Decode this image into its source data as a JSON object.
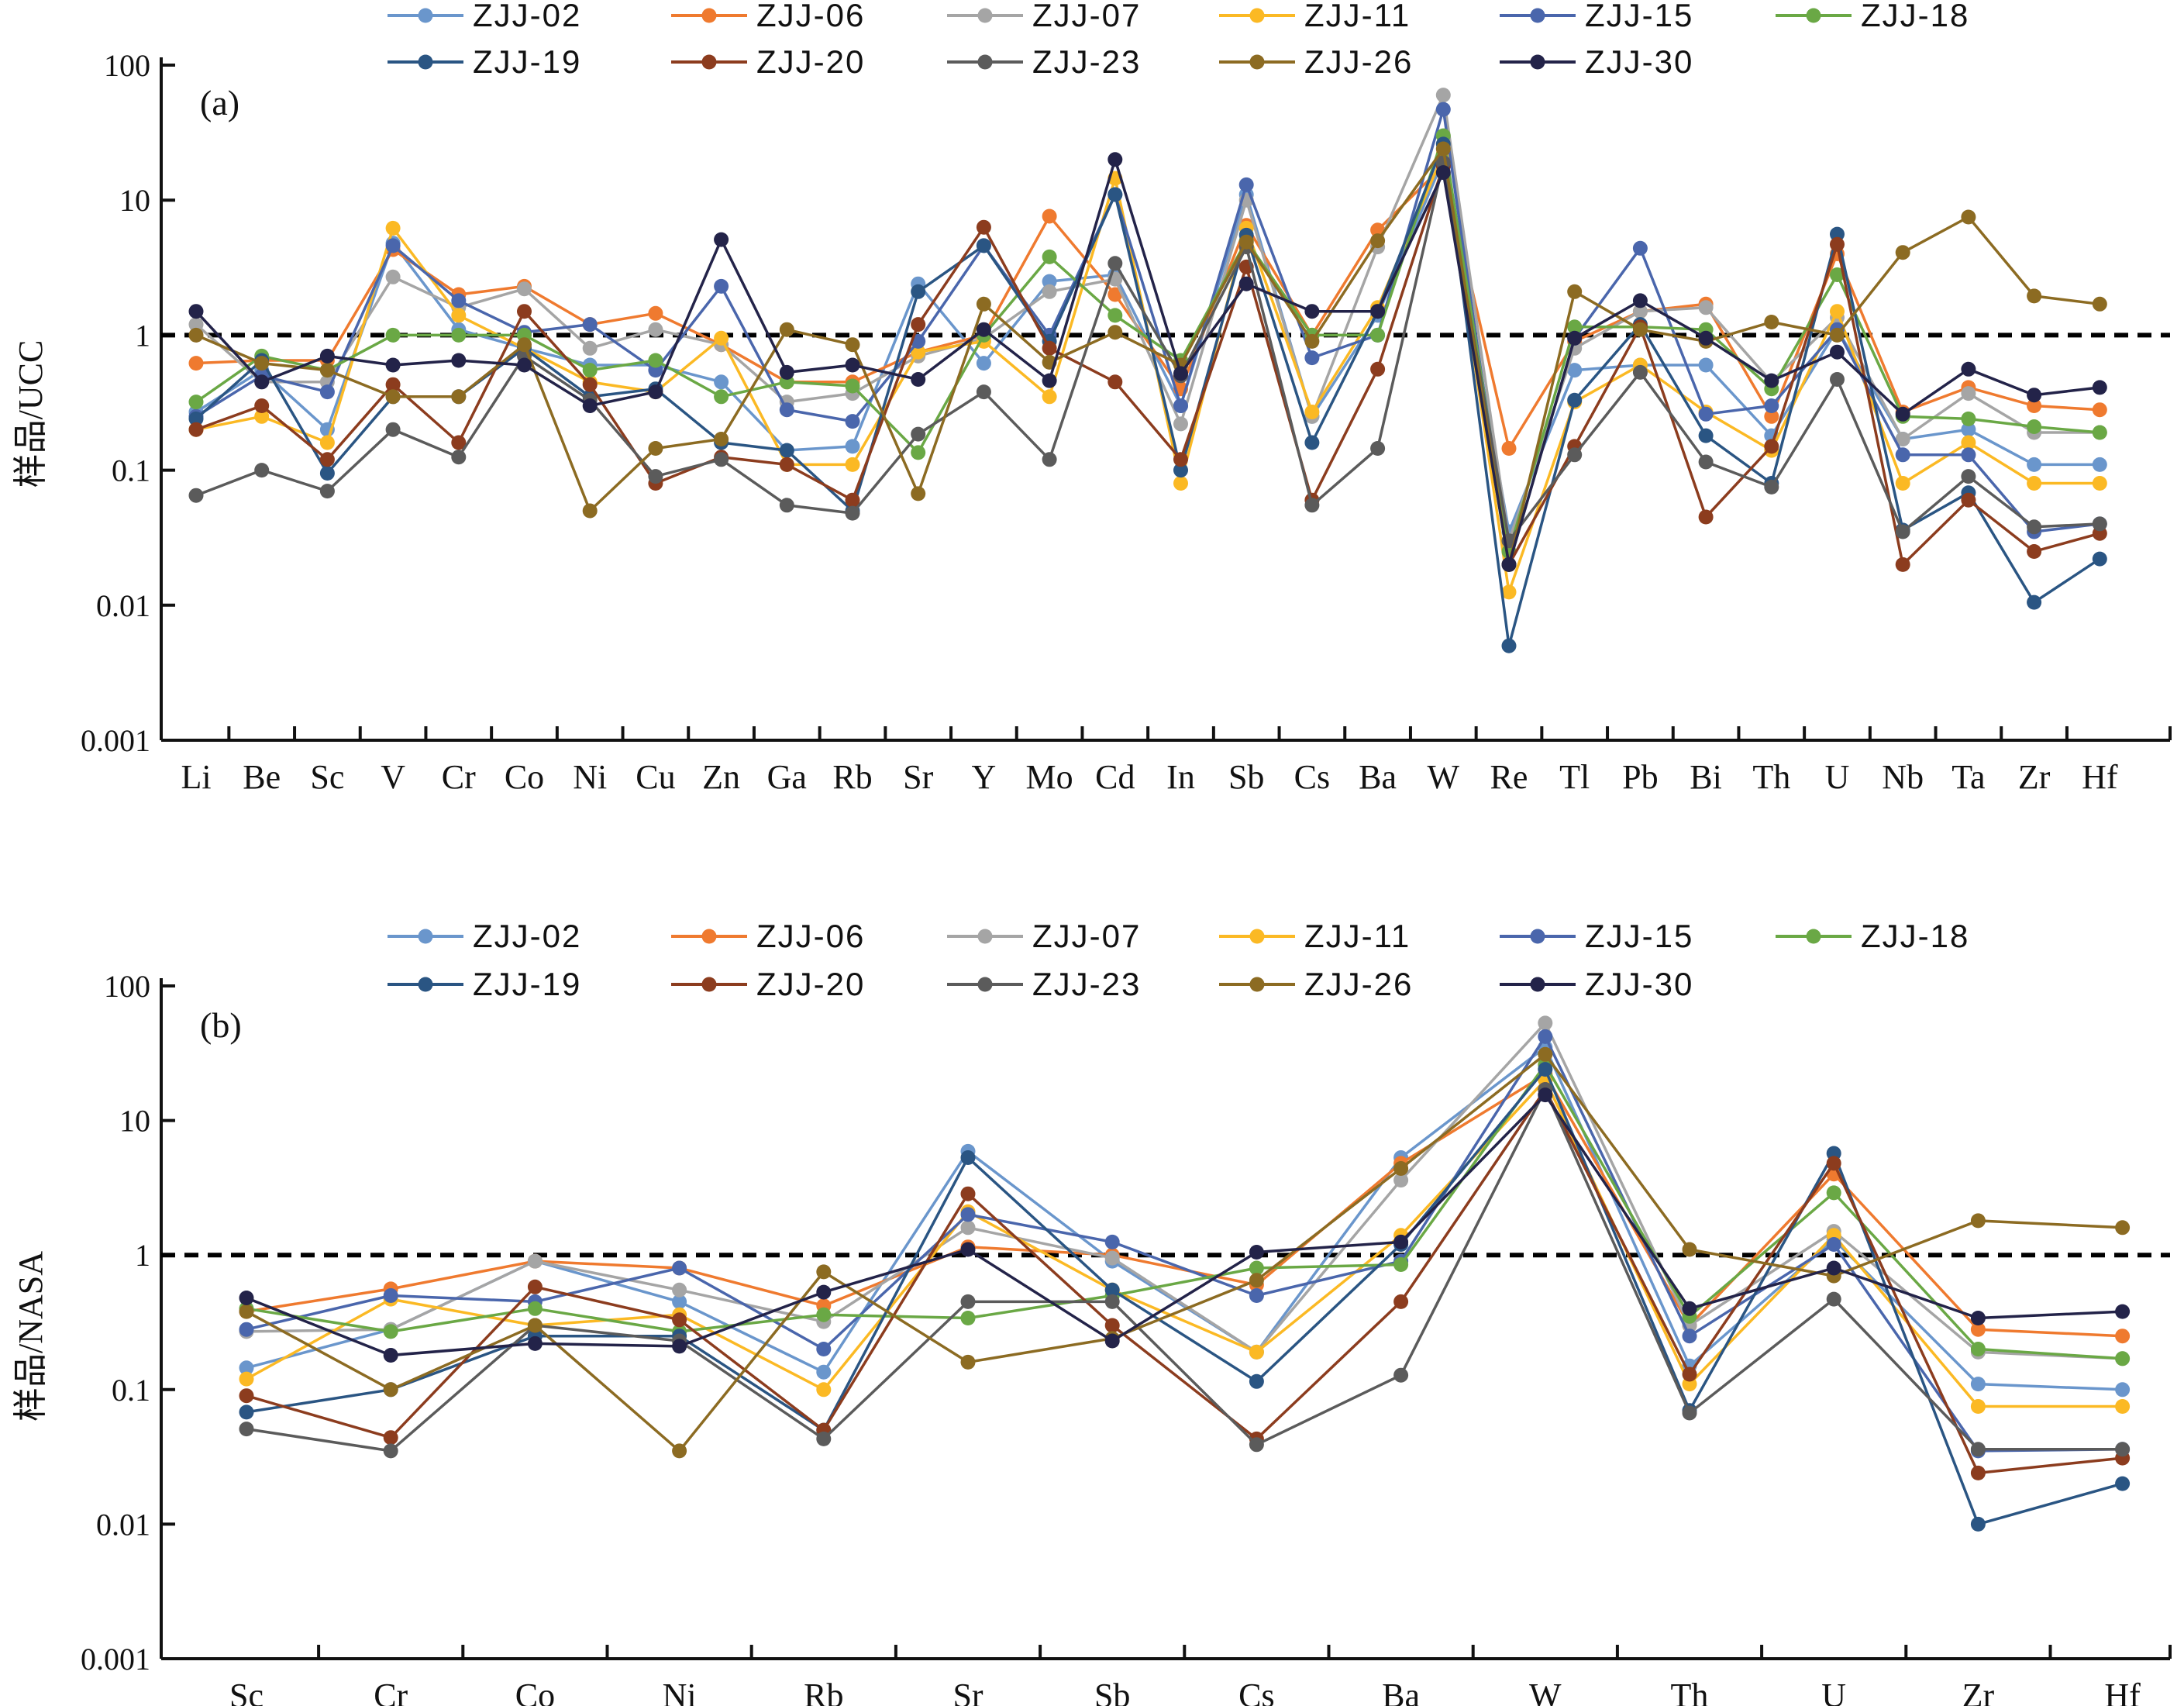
{
  "figure": {
    "series_colors": {
      "ZJJ-02": "#6a96cc",
      "ZJJ-06": "#ef7a2f",
      "ZJJ-07": "#a5a5a5",
      "ZJJ-11": "#fbb924",
      "ZJJ-15": "#4a66ac",
      "ZJJ-18": "#6aa845",
      "ZJJ-19": "#2a5583",
      "ZJJ-20": "#8c3c1e",
      "ZJJ-23": "#5b5b5b",
      "ZJJ-26": "#8c6b22",
      "ZJJ-30": "#232349"
    },
    "reference_line": 1
  },
  "chart_data": [
    {
      "type": "line",
      "panel_label": "(a)",
      "ylabel": "样品/UCC",
      "yscale": "log",
      "ylim": [
        0.001,
        100
      ],
      "y_tick_labels": [
        "0.001",
        "0.01",
        "0.1",
        "1",
        "10",
        "100"
      ],
      "grid": false,
      "legend_position": "top",
      "reference_line": 1,
      "categories": [
        "Li",
        "Be",
        "Sc",
        "V",
        "Cr",
        "Co",
        "Ni",
        "Cu",
        "Zn",
        "Ga",
        "Rb",
        "Sr",
        "Y",
        "Mo",
        "Cd",
        "In",
        "Sb",
        "Cs",
        "Ba",
        "W",
        "Re",
        "Tl",
        "Pb",
        "Bi",
        "Th",
        "U",
        "Nb",
        "Ta",
        "Zr",
        "Hf"
      ],
      "series": [
        {
          "name": "ZJJ-02",
          "values": [
            0.27,
            0.55,
            0.2,
            4.8,
            1.1,
            0.8,
            0.6,
            0.6,
            0.45,
            0.14,
            0.15,
            2.4,
            0.62,
            2.5,
            2.8,
            0.3,
            11,
            0.25,
            1.4,
            20,
            0.035,
            0.55,
            0.6,
            0.6,
            0.18,
            1.1,
            0.17,
            0.2,
            0.11,
            0.11
          ]
        },
        {
          "name": "ZJJ-06",
          "values": [
            0.62,
            0.65,
            0.65,
            4.3,
            2.0,
            2.3,
            1.2,
            1.45,
            0.85,
            0.45,
            0.45,
            0.75,
            1.0,
            7.6,
            2.0,
            0.4,
            6.5,
            1.0,
            6.0,
            18,
            0.145,
            0.9,
            1.5,
            1.7,
            0.25,
            4.0,
            0.27,
            0.41,
            0.3,
            0.28
          ]
        },
        {
          "name": "ZJJ-07",
          "values": [
            1.2,
            0.45,
            0.45,
            2.7,
            1.6,
            2.2,
            0.8,
            1.1,
            0.85,
            0.32,
            0.37,
            0.7,
            0.95,
            2.1,
            2.6,
            0.22,
            10,
            0.25,
            4.5,
            60,
            0.03,
            0.8,
            1.5,
            1.6,
            0.45,
            1.35,
            0.17,
            0.37,
            0.19,
            0.19
          ]
        },
        {
          "name": "ZJJ-11",
          "values": [
            0.2,
            0.25,
            0.16,
            6.2,
            1.4,
            0.8,
            0.45,
            0.38,
            0.95,
            0.11,
            0.11,
            0.75,
            0.9,
            0.35,
            14.5,
            0.08,
            6.2,
            0.27,
            1.6,
            22,
            0.0125,
            0.32,
            0.6,
            0.27,
            0.14,
            1.5,
            0.08,
            0.16,
            0.08,
            0.08
          ]
        },
        {
          "name": "ZJJ-15",
          "values": [
            0.25,
            0.5,
            0.38,
            4.6,
            1.8,
            1.05,
            1.2,
            0.55,
            2.3,
            0.28,
            0.23,
            0.9,
            4.6,
            1.0,
            11,
            0.3,
            13,
            0.68,
            1.0,
            47,
            0.02,
            0.95,
            4.4,
            0.26,
            0.3,
            1.1,
            0.13,
            0.13,
            0.035,
            0.04
          ]
        },
        {
          "name": "ZJJ-18",
          "values": [
            0.32,
            0.7,
            0.55,
            1.0,
            1.0,
            1.0,
            0.55,
            0.65,
            0.35,
            0.45,
            0.42,
            0.135,
            1.0,
            3.8,
            1.4,
            0.65,
            5.0,
            1.0,
            1.0,
            30,
            0.025,
            1.15,
            1.15,
            1.1,
            0.4,
            2.8,
            0.25,
            0.24,
            0.21,
            0.19
          ]
        },
        {
          "name": "ZJJ-19",
          "values": [
            0.24,
            0.65,
            0.095,
            0.35,
            0.35,
            0.8,
            0.35,
            0.4,
            0.16,
            0.14,
            0.05,
            2.1,
            4.6,
            0.9,
            11,
            0.1,
            5.5,
            0.16,
            1.5,
            26,
            0.005,
            0.33,
            1.2,
            0.18,
            0.08,
            5.6,
            0.036,
            0.068,
            0.0105,
            0.022
          ]
        },
        {
          "name": "ZJJ-20",
          "values": [
            0.2,
            0.3,
            0.12,
            0.43,
            0.16,
            1.5,
            0.43,
            0.08,
            0.125,
            0.11,
            0.06,
            1.2,
            6.3,
            0.8,
            0.45,
            0.12,
            3.2,
            0.06,
            0.56,
            18,
            0.02,
            0.15,
            1.15,
            0.045,
            0.15,
            4.7,
            0.02,
            0.06,
            0.025,
            0.034
          ]
        },
        {
          "name": "ZJJ-23",
          "values": [
            0.065,
            0.1,
            0.07,
            0.2,
            0.125,
            0.7,
            0.33,
            0.09,
            0.12,
            0.055,
            0.048,
            0.185,
            0.38,
            0.12,
            3.4,
            0.5,
            4.5,
            0.055,
            0.145,
            19,
            0.03,
            0.13,
            0.53,
            0.115,
            0.075,
            0.47,
            0.035,
            0.09,
            0.038,
            0.04
          ]
        },
        {
          "name": "ZJJ-26",
          "values": [
            1.0,
            0.62,
            0.55,
            0.35,
            0.35,
            0.85,
            0.05,
            0.145,
            0.17,
            1.1,
            0.85,
            0.067,
            1.7,
            0.63,
            1.05,
            0.6,
            4.9,
            0.9,
            5.0,
            24,
            0.02,
            2.1,
            1.1,
            0.9,
            1.25,
            1.0,
            4.1,
            7.5,
            1.95,
            1.7
          ]
        },
        {
          "name": "ZJJ-30",
          "values": [
            1.5,
            0.45,
            0.7,
            0.6,
            0.65,
            0.6,
            0.3,
            0.38,
            5.1,
            0.53,
            0.6,
            0.47,
            1.1,
            0.46,
            20,
            0.52,
            2.4,
            1.5,
            1.5,
            16,
            0.02,
            0.95,
            1.8,
            0.95,
            0.46,
            0.75,
            0.26,
            0.56,
            0.36,
            0.41
          ]
        }
      ]
    },
    {
      "type": "line",
      "panel_label": "(b)",
      "ylabel": "样品/NASA",
      "yscale": "log",
      "ylim": [
        0.001,
        100
      ],
      "y_tick_labels": [
        "0.001",
        "0.01",
        "0.1",
        "1",
        "10",
        "100"
      ],
      "grid": false,
      "legend_position": "top",
      "reference_line": 1,
      "categories": [
        "Sc",
        "Cr",
        "Co",
        "Ni",
        "Rb",
        "Sr",
        "Sb",
        "Cs",
        "Ba",
        "W",
        "Th",
        "U",
        "Zr",
        "Hf"
      ],
      "series": [
        {
          "name": "ZJJ-02",
          "values": [
            0.145,
            0.28,
            0.9,
            0.45,
            0.135,
            5.9,
            0.9,
            0.19,
            5.3,
            35,
            0.15,
            1.3,
            0.11,
            0.1
          ]
        },
        {
          "name": "ZJJ-06",
          "values": [
            0.38,
            0.56,
            0.9,
            0.8,
            0.42,
            1.15,
            1.0,
            0.6,
            4.8,
            22,
            0.3,
            4.0,
            0.28,
            0.25
          ]
        },
        {
          "name": "ZJJ-07",
          "values": [
            0.27,
            0.28,
            0.9,
            0.55,
            0.32,
            1.6,
            0.95,
            0.19,
            3.6,
            53,
            0.3,
            1.5,
            0.19,
            0.17
          ]
        },
        {
          "name": "ZJJ-11",
          "values": [
            0.12,
            0.47,
            0.3,
            0.36,
            0.1,
            2.1,
            0.55,
            0.19,
            1.4,
            20,
            0.11,
            1.4,
            0.075,
            0.075
          ]
        },
        {
          "name": "ZJJ-15",
          "values": [
            0.28,
            0.5,
            0.45,
            0.8,
            0.2,
            2.0,
            1.25,
            0.5,
            0.9,
            42,
            0.25,
            1.2,
            0.035,
            0.036
          ]
        },
        {
          "name": "ZJJ-18",
          "values": [
            0.4,
            0.27,
            0.4,
            0.27,
            0.36,
            0.34,
            0.5,
            0.8,
            0.85,
            26,
            0.35,
            2.9,
            0.2,
            0.17
          ]
        },
        {
          "name": "ZJJ-19",
          "values": [
            0.068,
            0.1,
            0.25,
            0.25,
            0.05,
            5.3,
            0.55,
            0.115,
            1.2,
            24,
            0.07,
            5.7,
            0.01,
            0.02
          ]
        },
        {
          "name": "ZJJ-20",
          "values": [
            0.09,
            0.044,
            0.58,
            0.33,
            0.05,
            2.85,
            0.3,
            0.043,
            0.45,
            17,
            0.13,
            4.8,
            0.024,
            0.031
          ]
        },
        {
          "name": "ZJJ-23",
          "values": [
            0.051,
            0.035,
            0.3,
            0.23,
            0.043,
            0.45,
            0.45,
            0.039,
            0.128,
            17,
            0.067,
            0.47,
            0.036,
            0.036
          ]
        },
        {
          "name": "ZJJ-26",
          "values": [
            0.38,
            0.1,
            0.3,
            0.035,
            0.75,
            0.16,
            0.24,
            0.65,
            4.4,
            31,
            1.1,
            0.7,
            1.8,
            1.6
          ]
        },
        {
          "name": "ZJJ-30",
          "values": [
            0.48,
            0.18,
            0.22,
            0.21,
            0.53,
            1.1,
            0.23,
            1.05,
            1.25,
            15.5,
            0.4,
            0.8,
            0.34,
            0.38
          ]
        }
      ]
    }
  ]
}
